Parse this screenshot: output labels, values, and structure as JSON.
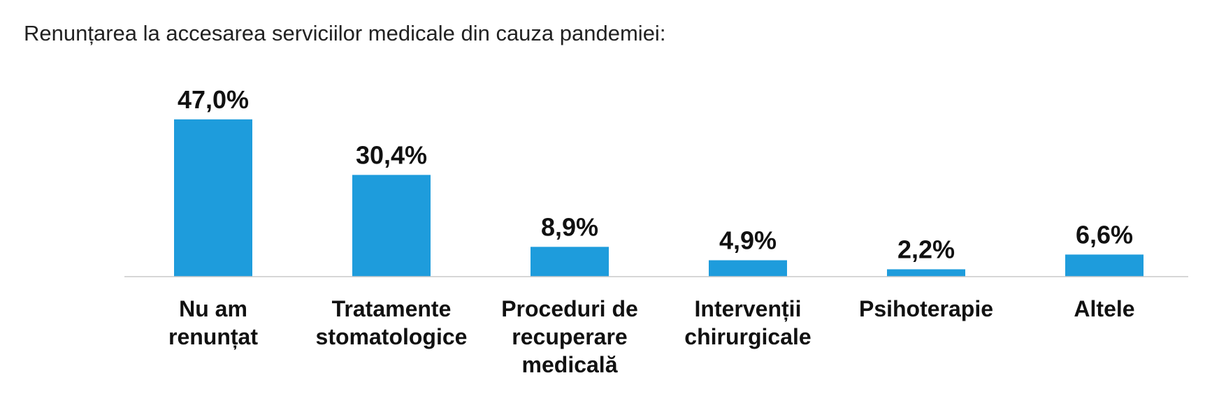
{
  "chart_data": {
    "type": "bar",
    "title": "Renunțarea la accesarea serviciilor medicale din cauza pandemiei:",
    "categories": [
      [
        "Nu am",
        "renunțat"
      ],
      [
        "Tratamente",
        "stomatologice"
      ],
      [
        "Proceduri de",
        "recuperare",
        "medicală"
      ],
      [
        "Intervenții",
        "chirurgicale"
      ],
      [
        "Psihoterapie"
      ],
      [
        "Altele"
      ]
    ],
    "values": [
      47.0,
      30.4,
      8.9,
      4.9,
      2.2,
      6.6
    ],
    "value_labels": [
      "47,0%",
      "30,4%",
      "8,9%",
      "4,9%",
      "2,2%",
      "6,6%"
    ],
    "bar_color": "#1e9cdc",
    "baseline_color": "#c8c8c8",
    "grid": false,
    "legend": "none"
  }
}
